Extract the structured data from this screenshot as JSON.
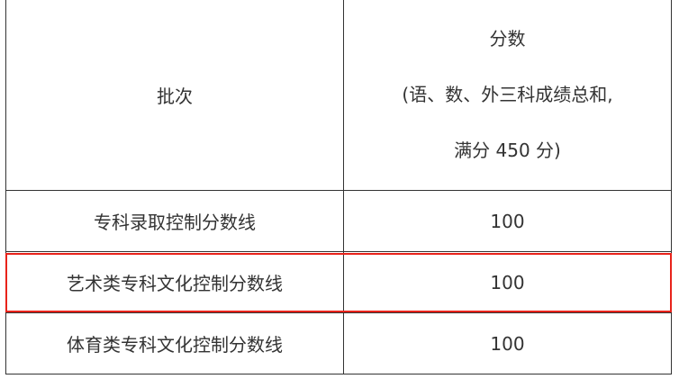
{
  "table": {
    "header": {
      "col1": "批次",
      "col2_lines": [
        "分数",
        "(语、数、外三科成绩总和,",
        "满分 450 分)"
      ]
    },
    "rows": [
      {
        "batch": "专科录取控制分数线",
        "score": "100"
      },
      {
        "batch": "艺术类专科文化控制分数线",
        "score": "100",
        "highlighted": true
      },
      {
        "batch": "体育类专科文化控制分数线",
        "score": "100"
      }
    ]
  },
  "colors": {
    "highlight": "#e8231b",
    "text": "#333333"
  }
}
